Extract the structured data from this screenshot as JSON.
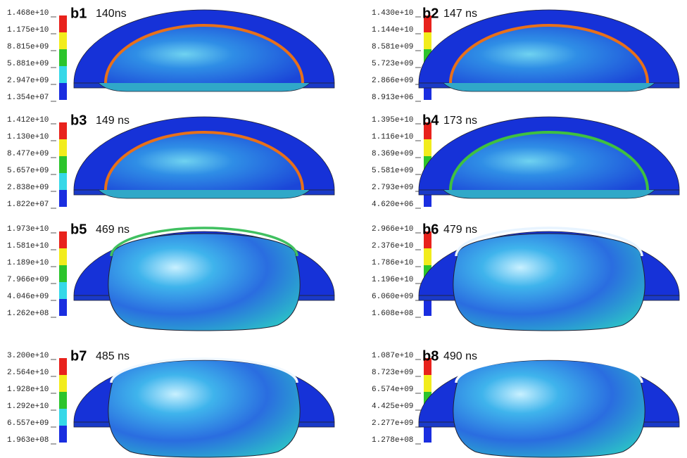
{
  "panels": [
    {
      "label": "b1",
      "time": "140ns",
      "legend": [
        "1.468e+10",
        "1.175e+10",
        "8.815e+09",
        "5.881e+09",
        "2.947e+09",
        "1.354e+07"
      ]
    },
    {
      "label": "b2",
      "time": "147 ns",
      "legend": [
        "1.430e+10",
        "1.144e+10",
        "8.581e+09",
        "5.723e+09",
        "2.866e+09",
        "8.913e+06"
      ]
    },
    {
      "label": "b3",
      "time": "149 ns",
      "legend": [
        "1.412e+10",
        "1.130e+10",
        "8.477e+09",
        "5.657e+09",
        "2.838e+09",
        "1.822e+07"
      ]
    },
    {
      "label": "b4",
      "time": "173 ns",
      "legend": [
        "1.395e+10",
        "1.116e+10",
        "8.369e+09",
        "5.581e+09",
        "2.793e+09",
        "4.620e+06"
      ]
    },
    {
      "label": "b5",
      "time": "469 ns",
      "legend": [
        "1.973e+10",
        "1.581e+10",
        "1.189e+10",
        "7.966e+09",
        "4.046e+09",
        "1.262e+08"
      ]
    },
    {
      "label": "b6",
      "time": "479 ns",
      "legend": [
        "2.966e+10",
        "2.376e+10",
        "1.786e+10",
        "1.196e+10",
        "6.060e+09",
        "1.608e+08"
      ]
    },
    {
      "label": "b7",
      "time": "485 ns",
      "legend": [
        "3.200e+10",
        "2.564e+10",
        "1.928e+10",
        "1.292e+10",
        "6.557e+09",
        "1.963e+08"
      ]
    },
    {
      "label": "b8",
      "time": "490 ns",
      "legend": [
        "1.087e+10",
        "8.723e+09",
        "6.574e+09",
        "4.425e+09",
        "2.277e+09",
        "1.278e+08"
      ]
    }
  ]
}
